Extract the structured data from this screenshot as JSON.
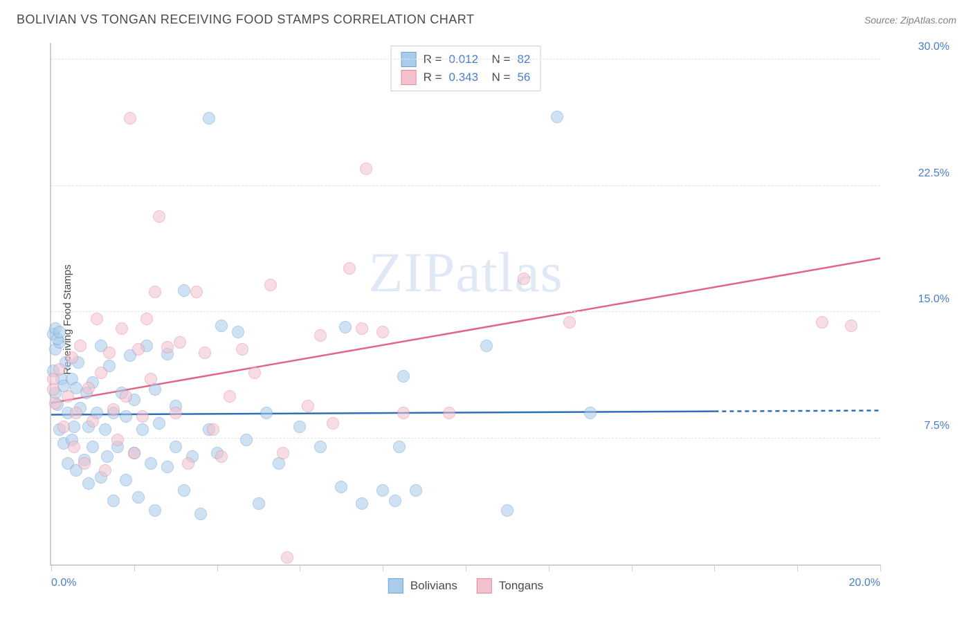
{
  "title": "BOLIVIAN VS TONGAN RECEIVING FOOD STAMPS CORRELATION CHART",
  "source_label": "Source: ZipAtlas.com",
  "ylabel": "Receiving Food Stamps",
  "watermark": "ZIPatlas",
  "chart": {
    "type": "scatter",
    "xlim": [
      0,
      20
    ],
    "ylim": [
      0,
      31
    ],
    "x_tick_positions": [
      0,
      2,
      4,
      6,
      8,
      10,
      12,
      14,
      16,
      18,
      20
    ],
    "x_tick_labels": {
      "0": "0.0%",
      "20": "20.0%"
    },
    "y_gridlines": [
      7.5,
      15.0,
      22.5,
      30.0
    ],
    "y_tick_labels": [
      "7.5%",
      "15.0%",
      "22.5%",
      "30.0%"
    ],
    "background_color": "#ffffff",
    "grid_color": "#e3e3e3",
    "axis_color": "#cfcfcf",
    "tick_label_color": "#4a7ec7",
    "text_color": "#4a4a4a",
    "marker_radius": 9,
    "marker_opacity": 0.55,
    "series": [
      {
        "name": "Bolivians",
        "fill": "#a9cceb",
        "stroke": "#6fa3d6",
        "trend": {
          "y_at_x0": 8.9,
          "y_at_x16": 9.1,
          "solid_until_x": 16,
          "color": "#2f6fb5",
          "width": 2.5
        },
        "stats": {
          "R": "0.012",
          "N": "82"
        },
        "points": [
          [
            0.05,
            13.7
          ],
          [
            0.05,
            11.5
          ],
          [
            0.1,
            12.8
          ],
          [
            0.1,
            10.2
          ],
          [
            0.15,
            9.5
          ],
          [
            0.2,
            13.2
          ],
          [
            0.2,
            8.0
          ],
          [
            0.25,
            11.0
          ],
          [
            0.3,
            10.6
          ],
          [
            0.3,
            7.2
          ],
          [
            0.35,
            12.0
          ],
          [
            0.4,
            9.0
          ],
          [
            0.4,
            6.0
          ],
          [
            0.5,
            11.0
          ],
          [
            0.5,
            7.4
          ],
          [
            0.55,
            8.2
          ],
          [
            0.6,
            10.5
          ],
          [
            0.6,
            5.6
          ],
          [
            0.65,
            12.0
          ],
          [
            0.7,
            9.3
          ],
          [
            0.8,
            6.2
          ],
          [
            0.85,
            10.2
          ],
          [
            0.9,
            8.2
          ],
          [
            0.9,
            4.8
          ],
          [
            1.0,
            10.8
          ],
          [
            1.0,
            7.0
          ],
          [
            1.1,
            9.0
          ],
          [
            1.2,
            5.2
          ],
          [
            1.2,
            13.0
          ],
          [
            1.3,
            8.0
          ],
          [
            1.35,
            6.4
          ],
          [
            1.4,
            11.8
          ],
          [
            1.5,
            9.0
          ],
          [
            1.5,
            3.8
          ],
          [
            1.6,
            7.0
          ],
          [
            1.7,
            10.2
          ],
          [
            1.8,
            5.0
          ],
          [
            1.8,
            8.8
          ],
          [
            1.9,
            12.4
          ],
          [
            2.0,
            6.6
          ],
          [
            2.0,
            9.8
          ],
          [
            2.1,
            4.0
          ],
          [
            2.2,
            8.0
          ],
          [
            2.3,
            13.0
          ],
          [
            2.4,
            6.0
          ],
          [
            2.5,
            10.4
          ],
          [
            2.5,
            3.2
          ],
          [
            2.6,
            8.4
          ],
          [
            2.8,
            5.8
          ],
          [
            2.8,
            12.5
          ],
          [
            3.0,
            7.0
          ],
          [
            3.0,
            9.4
          ],
          [
            3.2,
            4.4
          ],
          [
            3.2,
            16.3
          ],
          [
            3.4,
            6.4
          ],
          [
            3.6,
            3.0
          ],
          [
            3.8,
            8.0
          ],
          [
            3.8,
            26.5
          ],
          [
            4.0,
            6.6
          ],
          [
            4.1,
            14.2
          ],
          [
            4.5,
            13.8
          ],
          [
            4.7,
            7.4
          ],
          [
            5.0,
            3.6
          ],
          [
            5.2,
            9.0
          ],
          [
            5.5,
            6.0
          ],
          [
            6.0,
            8.2
          ],
          [
            6.5,
            7.0
          ],
          [
            7.0,
            4.6
          ],
          [
            7.1,
            14.1
          ],
          [
            7.5,
            3.6
          ],
          [
            8.0,
            4.4
          ],
          [
            8.3,
            3.8
          ],
          [
            8.4,
            7.0
          ],
          [
            8.5,
            11.2
          ],
          [
            8.8,
            4.4
          ],
          [
            10.5,
            13.0
          ],
          [
            11.0,
            3.2
          ],
          [
            12.2,
            26.6
          ],
          [
            13.0,
            9.0
          ],
          [
            0.1,
            14.0
          ],
          [
            0.15,
            13.4
          ],
          [
            0.2,
            13.8
          ]
        ]
      },
      {
        "name": "Tongans",
        "fill": "#f3c1cd",
        "stroke": "#e48ba3",
        "trend": {
          "y_at_x0": 9.6,
          "y_at_x20": 18.2,
          "color": "#e26589",
          "width": 2.5
        },
        "stats": {
          "R": "0.343",
          "N": "56"
        },
        "points": [
          [
            0.05,
            11.0
          ],
          [
            0.1,
            9.6
          ],
          [
            0.2,
            11.6
          ],
          [
            0.3,
            8.2
          ],
          [
            0.4,
            10.0
          ],
          [
            0.5,
            12.3
          ],
          [
            0.55,
            7.0
          ],
          [
            0.6,
            9.0
          ],
          [
            0.7,
            13.0
          ],
          [
            0.8,
            6.0
          ],
          [
            0.9,
            10.5
          ],
          [
            1.0,
            8.5
          ],
          [
            1.1,
            14.6
          ],
          [
            1.2,
            11.4
          ],
          [
            1.3,
            5.6
          ],
          [
            1.4,
            12.6
          ],
          [
            1.5,
            9.2
          ],
          [
            1.6,
            7.4
          ],
          [
            1.7,
            14.0
          ],
          [
            1.8,
            10.0
          ],
          [
            1.9,
            26.5
          ],
          [
            2.0,
            6.6
          ],
          [
            2.1,
            12.8
          ],
          [
            2.2,
            8.8
          ],
          [
            2.3,
            14.6
          ],
          [
            2.4,
            11.0
          ],
          [
            2.5,
            16.2
          ],
          [
            2.6,
            20.7
          ],
          [
            2.8,
            12.9
          ],
          [
            3.0,
            9.0
          ],
          [
            3.1,
            13.2
          ],
          [
            3.3,
            6.0
          ],
          [
            3.5,
            16.2
          ],
          [
            3.7,
            12.6
          ],
          [
            3.9,
            8.0
          ],
          [
            4.1,
            6.4
          ],
          [
            4.3,
            10.0
          ],
          [
            4.6,
            12.8
          ],
          [
            4.9,
            11.4
          ],
          [
            5.3,
            16.6
          ],
          [
            5.6,
            6.6
          ],
          [
            5.7,
            0.4
          ],
          [
            6.2,
            9.4
          ],
          [
            6.5,
            13.6
          ],
          [
            6.8,
            8.4
          ],
          [
            7.2,
            17.6
          ],
          [
            7.5,
            14.0
          ],
          [
            7.6,
            23.5
          ],
          [
            8.0,
            13.8
          ],
          [
            8.5,
            9.0
          ],
          [
            9.6,
            9.0
          ],
          [
            11.4,
            17.0
          ],
          [
            12.5,
            14.4
          ],
          [
            18.6,
            14.4
          ],
          [
            19.3,
            14.2
          ],
          [
            0.05,
            10.4
          ]
        ]
      }
    ]
  },
  "legend": {
    "series1": "Bolivians",
    "series2": "Tongans"
  }
}
